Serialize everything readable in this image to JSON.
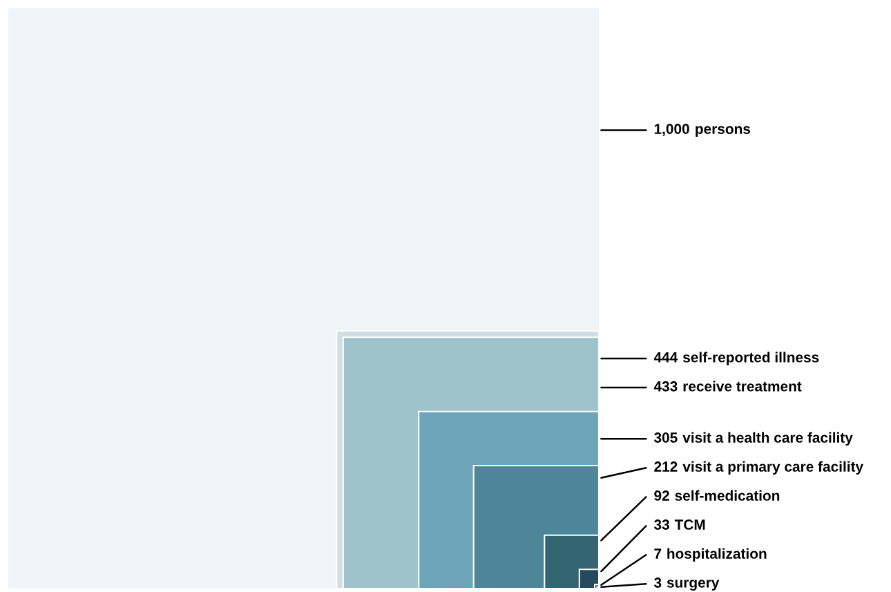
{
  "chart_data": {
    "type": "other",
    "categories": [
      "persons",
      "self-reported illness",
      "receive treatment",
      "visit a health care facility",
      "visit a primary care facility",
      "self-medication",
      "TCM",
      "hospitalization",
      "surgery"
    ],
    "values": [
      1000,
      444,
      433,
      305,
      212,
      92,
      33,
      7,
      3
    ],
    "value_labels": [
      "1,000",
      "444",
      "433",
      "305",
      "212",
      "92",
      "33",
      "7",
      "3"
    ],
    "colors": [
      "#f0f4f7",
      "#d0dde6",
      "#9dc3cb",
      "#6da5b8",
      "#4e8699",
      "#336472",
      "#244a5b",
      "#1f3d4d",
      "#1a2f3d"
    ]
  }
}
